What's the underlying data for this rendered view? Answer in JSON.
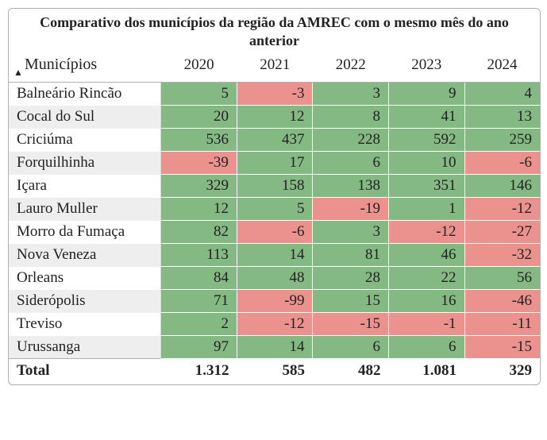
{
  "title": "Comparativo dos municípios da região da AMREC com o mesmo mês do ano anterior",
  "columns": {
    "muni": "Municípios",
    "y2020": "2020",
    "y2021": "2021",
    "y2022": "2022",
    "y2023": "2023",
    "y2024": "2024"
  },
  "colors": {
    "positive": "#85b984",
    "negative": "#ec928e",
    "row_alt": "#eeeeee",
    "border": "#b0b0b0",
    "text": "#222222"
  },
  "rows": [
    {
      "name": "Balneário Rincão",
      "v": [
        "5",
        "-3",
        "3",
        "9",
        "4"
      ],
      "neg": [
        false,
        true,
        false,
        false,
        false
      ]
    },
    {
      "name": "Cocal do Sul",
      "v": [
        "20",
        "12",
        "8",
        "41",
        "13"
      ],
      "neg": [
        false,
        false,
        false,
        false,
        false
      ]
    },
    {
      "name": "Criciúma",
      "v": [
        "536",
        "437",
        "228",
        "592",
        "259"
      ],
      "neg": [
        false,
        false,
        false,
        false,
        false
      ]
    },
    {
      "name": "Forquilhinha",
      "v": [
        "-39",
        "17",
        "6",
        "10",
        "-6"
      ],
      "neg": [
        true,
        false,
        false,
        false,
        true
      ]
    },
    {
      "name": "Içara",
      "v": [
        "329",
        "158",
        "138",
        "351",
        "146"
      ],
      "neg": [
        false,
        false,
        false,
        false,
        false
      ]
    },
    {
      "name": "Lauro Muller",
      "v": [
        "12",
        "5",
        "-19",
        "1",
        "-12"
      ],
      "neg": [
        false,
        false,
        true,
        false,
        true
      ]
    },
    {
      "name": "Morro da Fumaça",
      "v": [
        "82",
        "-6",
        "3",
        "-12",
        "-27"
      ],
      "neg": [
        false,
        true,
        false,
        true,
        true
      ]
    },
    {
      "name": "Nova Veneza",
      "v": [
        "113",
        "14",
        "81",
        "46",
        "-32"
      ],
      "neg": [
        false,
        false,
        false,
        false,
        true
      ]
    },
    {
      "name": "Orleans",
      "v": [
        "84",
        "48",
        "28",
        "22",
        "56"
      ],
      "neg": [
        false,
        false,
        false,
        false,
        false
      ]
    },
    {
      "name": "Siderópolis",
      "v": [
        "71",
        "-99",
        "15",
        "16",
        "-46"
      ],
      "neg": [
        false,
        true,
        false,
        false,
        true
      ]
    },
    {
      "name": "Treviso",
      "v": [
        "2",
        "-12",
        "-15",
        "-1",
        "-11"
      ],
      "neg": [
        false,
        true,
        true,
        true,
        true
      ]
    },
    {
      "name": "Urussanga",
      "v": [
        "97",
        "14",
        "6",
        "6",
        "-15"
      ],
      "neg": [
        false,
        false,
        false,
        false,
        true
      ]
    }
  ],
  "total": {
    "label": "Total",
    "v": [
      "1.312",
      "585",
      "482",
      "1.081",
      "329"
    ]
  },
  "sort_indicator": "▲"
}
